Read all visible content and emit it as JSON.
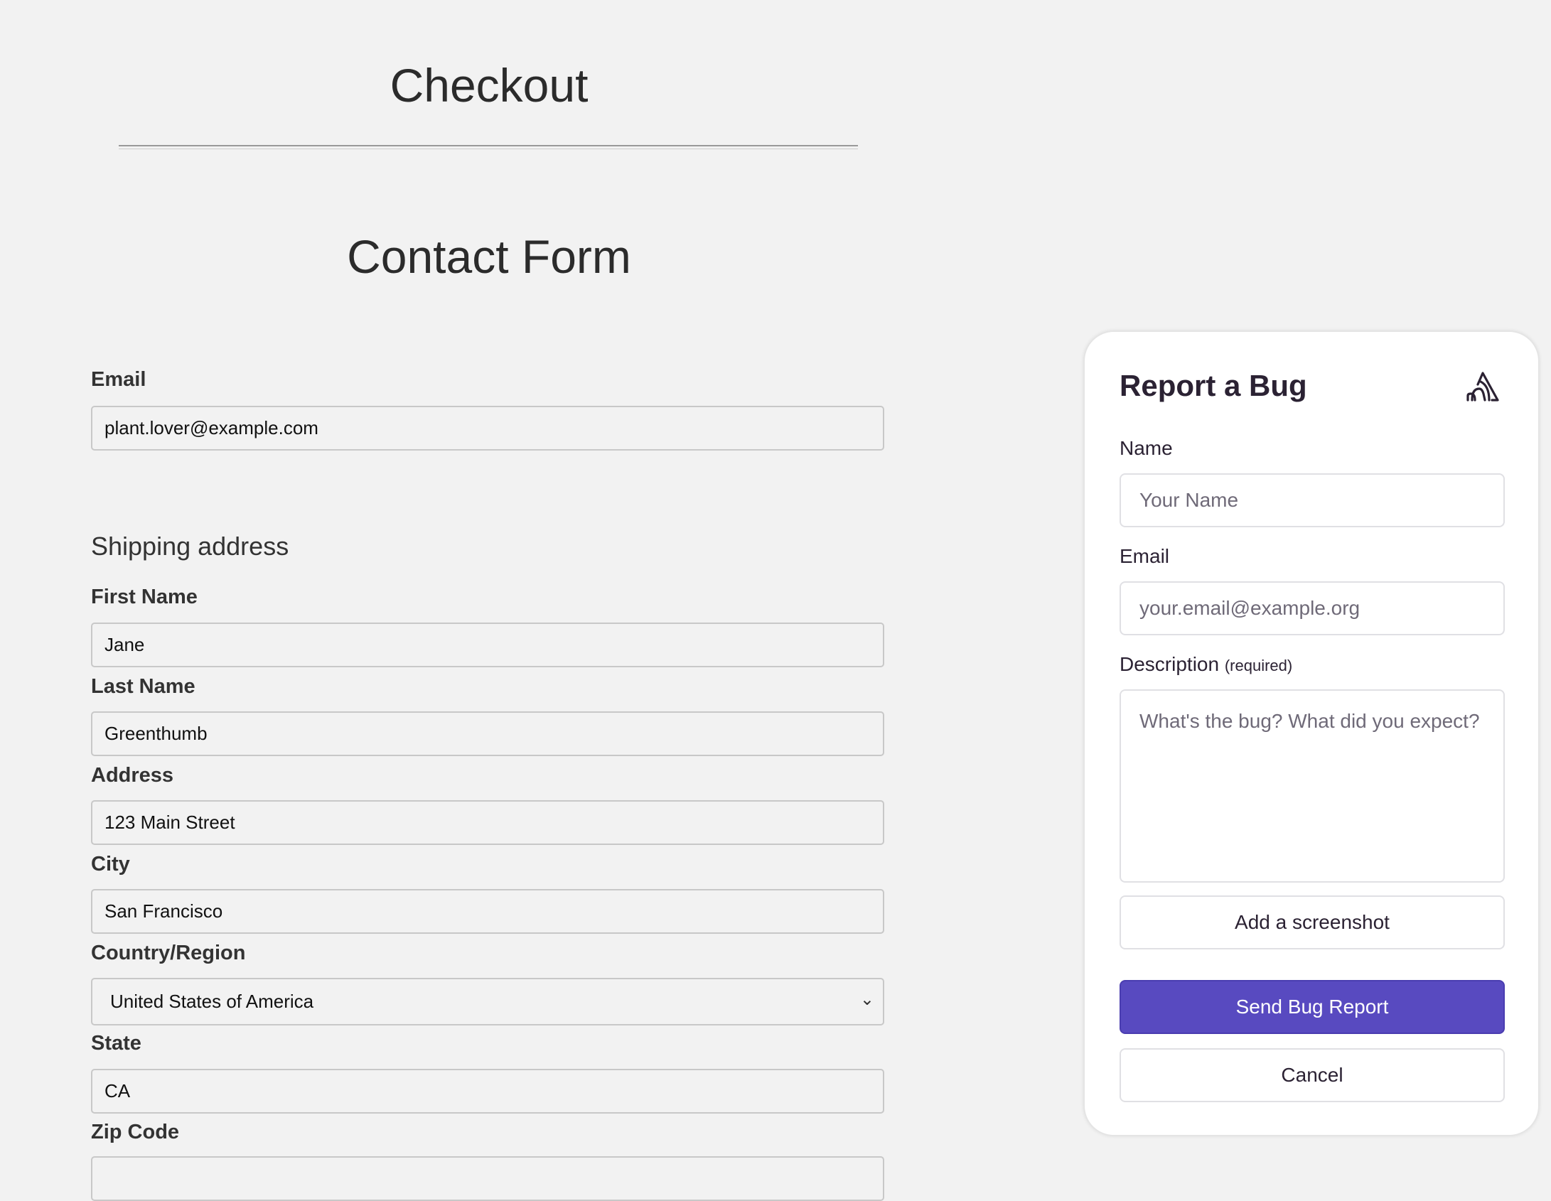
{
  "checkout_title": "Checkout",
  "contact_title": "Contact Form",
  "email": {
    "label": "Email",
    "value": "plant.lover@example.com"
  },
  "shipping": {
    "heading": "Shipping address",
    "first_name": {
      "label": "First Name",
      "value": "Jane"
    },
    "last_name": {
      "label": "Last Name",
      "value": "Greenthumb"
    },
    "address": {
      "label": "Address",
      "value": "123 Main Street"
    },
    "city": {
      "label": "City",
      "value": "San Francisco"
    },
    "country": {
      "label": "Country/Region",
      "value": "United States of America"
    },
    "state": {
      "label": "State",
      "value": "CA"
    },
    "zip": {
      "label": "Zip Code",
      "value": ""
    }
  },
  "bug_widget": {
    "title": "Report a Bug",
    "logo_icon": "sentry-logo-icon",
    "name_label": "Name",
    "name_placeholder": "Your Name",
    "email_label": "Email",
    "email_placeholder": "your.email@example.org",
    "description_label": "Description",
    "description_required": "(required)",
    "description_placeholder": "What's the bug? What did you expect?",
    "screenshot_button": "Add a screenshot",
    "submit_button": "Send Bug Report",
    "cancel_button": "Cancel",
    "accent_color": "#584ac0"
  }
}
